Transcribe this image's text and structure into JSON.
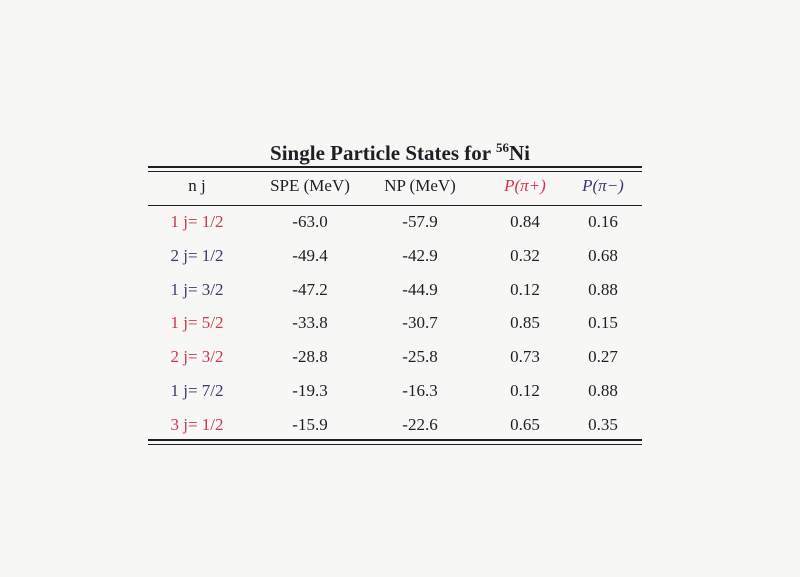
{
  "title": {
    "text": "Single Particle States for ",
    "isotope_mass": "56",
    "isotope_symbol": "Ni"
  },
  "colors": {
    "red": "#d0364e",
    "blue": "#3a3a6e",
    "text": "#1e1e24"
  },
  "headers": [
    "n j",
    "SPE (MeV)",
    "NP (MeV)",
    "P(π+)",
    "P(π−)"
  ],
  "header_colors": [
    "text",
    "text",
    "text",
    "red",
    "blue"
  ],
  "rows": [
    {
      "nj": "1 j= 1/2",
      "spe": "-63.0",
      "np": "-57.9",
      "pp": "0.84",
      "pm": "0.16",
      "color": "red"
    },
    {
      "nj": "2 j= 1/2",
      "spe": "-49.4",
      "np": "-42.9",
      "pp": "0.32",
      "pm": "0.68",
      "color": "blue"
    },
    {
      "nj": "1 j= 3/2",
      "spe": "-47.2",
      "np": "-44.9",
      "pp": "0.12",
      "pm": "0.88",
      "color": "blue"
    },
    {
      "nj": "1 j= 5/2",
      "spe": "-33.8",
      "np": "-30.7",
      "pp": "0.85",
      "pm": "0.15",
      "color": "red"
    },
    {
      "nj": "2 j= 3/2",
      "spe": "-28.8",
      "np": "-25.8",
      "pp": "0.73",
      "pm": "0.27",
      "color": "red"
    },
    {
      "nj": "1 j= 7/2",
      "spe": "-19.3",
      "np": "-16.3",
      "pp": "0.12",
      "pm": "0.88",
      "color": "blue"
    },
    {
      "nj": "3 j= 1/2",
      "spe": "-15.9",
      "np": "-22.6",
      "pp": "0.65",
      "pm": "0.35",
      "color": "red"
    }
  ]
}
